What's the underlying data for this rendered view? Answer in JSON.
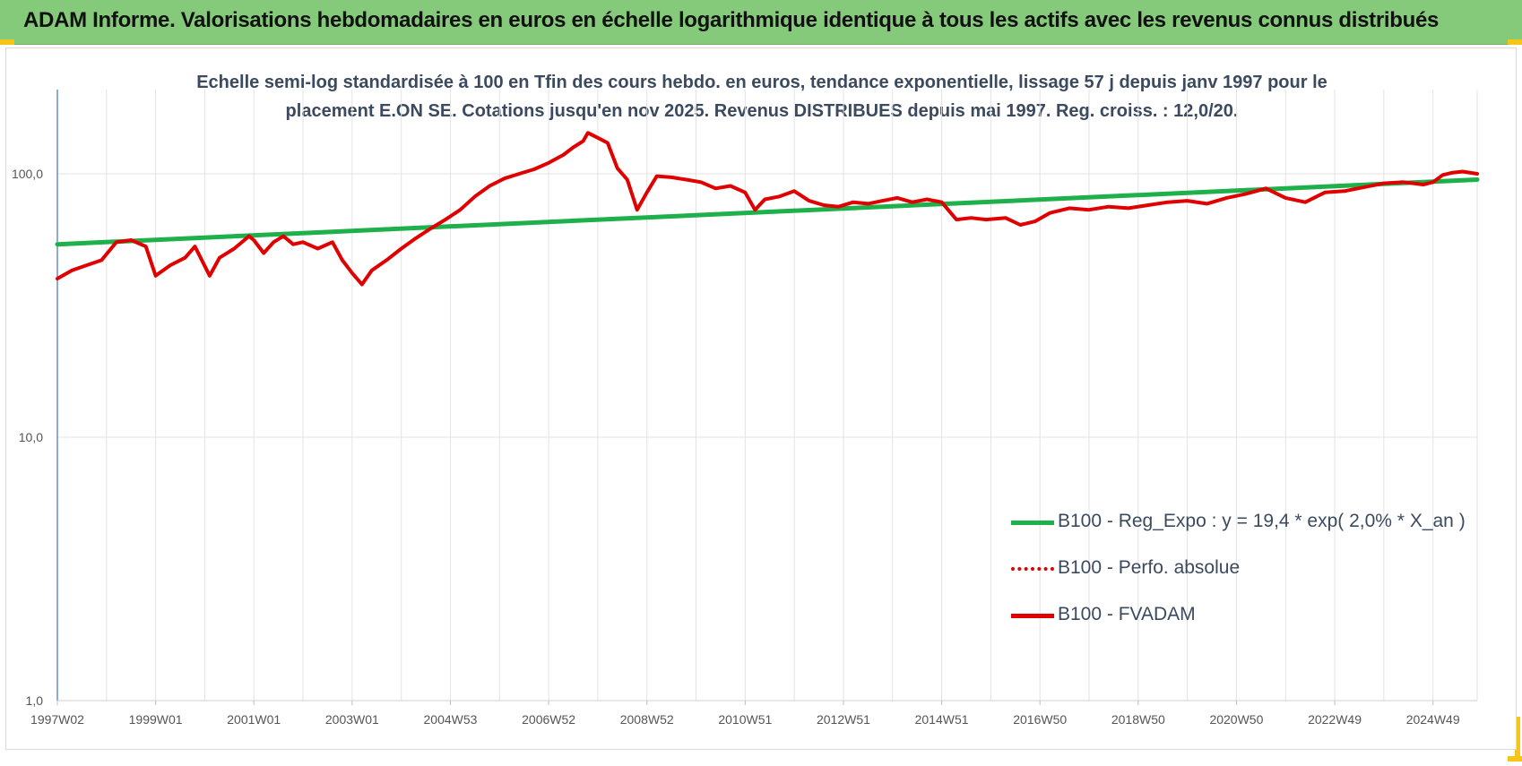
{
  "header": {
    "title": "ADAM Informe. Valorisations hebdomadaires en euros en échelle logarithmique identique à tous les actifs avec les revenus connus distribués"
  },
  "chart_data": {
    "type": "line",
    "subtitle_lines": [
      "Echelle semi-log standardisée à 100 en Tfin des cours hebdo. en euros, tendance exponentielle, lissage 57 j depuis janv 1997 pour le",
      "placement E.ON SE. Cotations jusqu'en nov 2025. Revenus DISTRIBUES depuis mai 1997. Reg. croiss. : 12,0/20."
    ],
    "y_scale": "log",
    "ylim": [
      1,
      180
    ],
    "y_ticks": [
      {
        "value": 1,
        "label": "1,0"
      },
      {
        "value": 10,
        "label": "10,0"
      },
      {
        "value": 100,
        "label": "100,0"
      }
    ],
    "xlim": [
      1997.0,
      2025.9
    ],
    "x_ticks": [
      {
        "value": 1997.0,
        "label": "1997W02"
      },
      {
        "value": 1999.0,
        "label": "1999W01"
      },
      {
        "value": 2001.0,
        "label": "2001W01"
      },
      {
        "value": 2003.0,
        "label": "2003W01"
      },
      {
        "value": 2005.0,
        "label": "2004W53"
      },
      {
        "value": 2007.0,
        "label": "2006W52"
      },
      {
        "value": 2009.0,
        "label": "2008W52"
      },
      {
        "value": 2011.0,
        "label": "2010W51"
      },
      {
        "value": 2013.0,
        "label": "2012W51"
      },
      {
        "value": 2015.0,
        "label": "2014W51"
      },
      {
        "value": 2017.0,
        "label": "2016W50"
      },
      {
        "value": 2019.0,
        "label": "2018W50"
      },
      {
        "value": 2021.0,
        "label": "2020W50"
      },
      {
        "value": 2023.0,
        "label": "2022W49"
      },
      {
        "value": 2025.0,
        "label": "2024W49"
      }
    ],
    "grid": "vertical",
    "legend_position": "bottom-right",
    "series": [
      {
        "name": "B100 - Reg_Expo : y = 19,4 * exp( 2,0% * X_an )",
        "color": "#1db04b",
        "style": "solid",
        "x": [
          1997.0,
          2025.9
        ],
        "y": [
          54.0,
          95.0
        ]
      },
      {
        "name": "B100 - Perfo. absolue",
        "color": "#e00000",
        "style": "dotted",
        "x": [],
        "y": []
      },
      {
        "name": "B100 - FVADAM",
        "color": "#e00000",
        "style": "solid",
        "x": [
          1997.0,
          1997.3,
          1997.6,
          1997.9,
          1998.2,
          1998.5,
          1998.8,
          1999.0,
          1999.3,
          1999.6,
          1999.8,
          2000.1,
          2000.3,
          2000.6,
          2000.9,
          2001.0,
          2001.2,
          2001.4,
          2001.6,
          2001.8,
          2002.0,
          2002.3,
          2002.6,
          2002.8,
          2003.0,
          2003.2,
          2003.4,
          2003.7,
          2004.0,
          2004.3,
          2004.6,
          2004.9,
          2005.2,
          2005.5,
          2005.8,
          2006.1,
          2006.4,
          2006.7,
          2007.0,
          2007.3,
          2007.5,
          2007.7,
          2007.8,
          2008.0,
          2008.2,
          2008.4,
          2008.6,
          2008.8,
          2009.0,
          2009.2,
          2009.5,
          2009.8,
          2010.1,
          2010.4,
          2010.7,
          2011.0,
          2011.2,
          2011.4,
          2011.7,
          2012.0,
          2012.3,
          2012.6,
          2012.9,
          2013.2,
          2013.5,
          2013.8,
          2014.1,
          2014.4,
          2014.7,
          2015.0,
          2015.3,
          2015.6,
          2015.9,
          2016.3,
          2016.6,
          2016.9,
          2017.2,
          2017.6,
          2018.0,
          2018.4,
          2018.8,
          2019.2,
          2019.6,
          2020.0,
          2020.4,
          2020.8,
          2021.2,
          2021.6,
          2022.0,
          2022.4,
          2022.8,
          2023.2,
          2023.6,
          2024.0,
          2024.4,
          2024.8,
          2025.0,
          2025.2,
          2025.4,
          2025.6,
          2025.9
        ],
        "y": [
          40.0,
          43.0,
          45.0,
          47.0,
          55.0,
          56.0,
          53.0,
          41.0,
          45.0,
          48.0,
          53.0,
          41.0,
          48.0,
          52.0,
          58.0,
          56.0,
          50.0,
          55.0,
          58.0,
          54.0,
          55.0,
          52.0,
          55.0,
          47.0,
          42.0,
          38.0,
          43.0,
          47.0,
          52.0,
          57.0,
          62.0,
          67.0,
          73.0,
          82.0,
          90.0,
          96.0,
          100.0,
          104.0,
          110.0,
          118.0,
          126.0,
          133.0,
          143.0,
          137.0,
          131.0,
          105.0,
          95.0,
          73.0,
          85.0,
          98.0,
          97.0,
          95.0,
          93.0,
          88.0,
          90.0,
          85.0,
          73.0,
          80.0,
          82.0,
          86.0,
          79.0,
          76.0,
          75.0,
          78.0,
          77.0,
          79.0,
          81.0,
          78.0,
          80.0,
          78.0,
          67.0,
          68.0,
          67.0,
          68.0,
          64.0,
          66.0,
          71.0,
          74.0,
          73.0,
          75.0,
          74.0,
          76.0,
          78.0,
          79.0,
          77.0,
          81.0,
          84.0,
          88.0,
          81.0,
          78.0,
          85.0,
          86.0,
          89.0,
          92.0,
          93.0,
          91.0,
          93.0,
          99.0,
          101.0,
          102.0,
          100.0
        ]
      }
    ]
  }
}
